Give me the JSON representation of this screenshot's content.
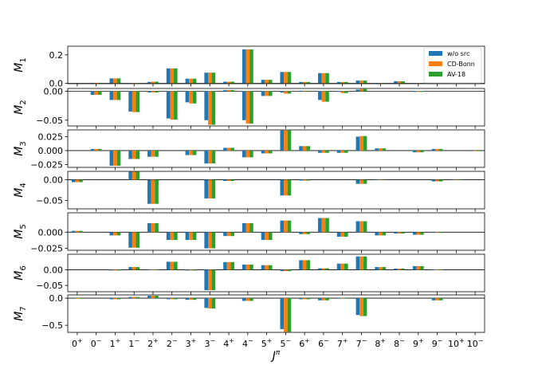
{
  "chart_data": {
    "type": "bar",
    "xlabel": "J^π",
    "categories": [
      {
        "J": "0",
        "p": "+"
      },
      {
        "J": "0",
        "p": "−"
      },
      {
        "J": "1",
        "p": "+"
      },
      {
        "J": "1",
        "p": "−"
      },
      {
        "J": "2",
        "p": "+"
      },
      {
        "J": "2",
        "p": "−"
      },
      {
        "J": "3",
        "p": "+"
      },
      {
        "J": "3",
        "p": "−"
      },
      {
        "J": "4",
        "p": "+"
      },
      {
        "J": "4",
        "p": "−"
      },
      {
        "J": "5",
        "p": "+"
      },
      {
        "J": "5",
        "p": "−"
      },
      {
        "J": "6",
        "p": "+"
      },
      {
        "J": "6",
        "p": "−"
      },
      {
        "J": "7",
        "p": "+"
      },
      {
        "J": "7",
        "p": "−"
      },
      {
        "J": "8",
        "p": "+"
      },
      {
        "J": "8",
        "p": "−"
      },
      {
        "J": "9",
        "p": "+"
      },
      {
        "J": "9",
        "p": "−"
      },
      {
        "J": "10",
        "p": "+"
      },
      {
        "J": "10",
        "p": "−"
      }
    ],
    "series_names": [
      "w/o src",
      "CD-Bonn",
      "AV-18"
    ],
    "colors": [
      "#1f77b4",
      "#ff7f0e",
      "#2ca02c"
    ],
    "legend_location": "top-right",
    "panels": [
      {
        "ylabel_base": "M",
        "ylabel_sub": "1",
        "ylim": [
          -0.002,
          0.26
        ],
        "yticks": [
          0.0,
          0.2
        ],
        "yticklabels": [
          "0.0",
          "0.2"
        ],
        "values": [
          [
            0,
            0,
            0
          ],
          [
            0.004,
            0.004,
            0.004
          ],
          [
            0.035,
            0.035,
            0.035
          ],
          [
            0.002,
            0.002,
            0.002
          ],
          [
            0.01,
            0.012,
            0.012
          ],
          [
            0.105,
            0.105,
            0.105
          ],
          [
            0.033,
            0.033,
            0.033
          ],
          [
            0.075,
            0.075,
            0.075
          ],
          [
            0.012,
            0.012,
            0.012
          ],
          [
            0.238,
            0.238,
            0.238
          ],
          [
            0.025,
            0.025,
            0.025
          ],
          [
            0.08,
            0.08,
            0.08
          ],
          [
            0.01,
            0.01,
            0.01
          ],
          [
            0.072,
            0.072,
            0.072
          ],
          [
            0.01,
            0.01,
            0.01
          ],
          [
            0.02,
            0.02,
            0.02
          ],
          [
            0.003,
            0.003,
            0.003
          ],
          [
            0.015,
            0.015,
            0.015
          ],
          [
            0.002,
            0.002,
            0.002
          ],
          [
            0.004,
            0.004,
            0.004
          ],
          [
            0.001,
            0.001,
            0.001
          ],
          [
            0.002,
            0.002,
            0.002
          ]
        ]
      },
      {
        "ylabel_base": "M",
        "ylabel_sub": "2",
        "ylim": [
          -0.06,
          0.005
        ],
        "yticks": [
          0.0,
          -0.05
        ],
        "yticklabels": [
          "0.00",
          "−0.05"
        ],
        "values": [
          [
            0,
            0,
            0
          ],
          [
            -0.006,
            -0.006,
            -0.006
          ],
          [
            -0.015,
            -0.015,
            -0.015
          ],
          [
            -0.035,
            -0.036,
            -0.036
          ],
          [
            -0.002,
            -0.002,
            -0.002
          ],
          [
            -0.047,
            -0.049,
            -0.049
          ],
          [
            -0.019,
            -0.021,
            -0.021
          ],
          [
            -0.05,
            -0.058,
            -0.058
          ],
          [
            0.002,
            0.002,
            0.002
          ],
          [
            -0.05,
            -0.056,
            -0.056
          ],
          [
            -0.008,
            -0.008,
            -0.008
          ],
          [
            -0.002,
            -0.004,
            -0.004
          ],
          [
            0.001,
            0.001,
            0.001
          ],
          [
            -0.015,
            -0.018,
            -0.018
          ],
          [
            -0.001,
            -0.003,
            -0.003
          ],
          [
            0.003,
            0.004,
            0.004
          ],
          [
            0,
            0,
            0
          ],
          [
            0,
            0,
            0
          ],
          [
            -0.001,
            -0.001,
            -0.001
          ],
          [
            0,
            0,
            0
          ],
          [
            0,
            0,
            0
          ],
          [
            0,
            0,
            0
          ]
        ]
      },
      {
        "ylabel_base": "M",
        "ylabel_sub": "3",
        "ylim": [
          -0.03,
          0.037
        ],
        "yticks": [
          0.025,
          0.0,
          -0.025
        ],
        "yticklabels": [
          "0.025",
          "0.000",
          "−0.025"
        ],
        "values": [
          [
            0,
            0,
            0
          ],
          [
            0.003,
            0.003,
            0.003
          ],
          [
            -0.027,
            -0.027,
            -0.027
          ],
          [
            -0.015,
            -0.015,
            -0.015
          ],
          [
            -0.011,
            -0.011,
            -0.011
          ],
          [
            0,
            0,
            0
          ],
          [
            -0.008,
            -0.008,
            -0.008
          ],
          [
            -0.023,
            -0.023,
            -0.023
          ],
          [
            0.005,
            0.005,
            0.005
          ],
          [
            -0.012,
            -0.012,
            -0.012
          ],
          [
            -0.005,
            -0.005,
            -0.005
          ],
          [
            0.036,
            0.036,
            0.036
          ],
          [
            0.008,
            0.008,
            0.008
          ],
          [
            -0.004,
            -0.004,
            -0.004
          ],
          [
            -0.004,
            -0.004,
            -0.004
          ],
          [
            0.025,
            0.026,
            0.026
          ],
          [
            0.004,
            0.004,
            0.004
          ],
          [
            0,
            0,
            0
          ],
          [
            -0.003,
            -0.003,
            -0.003
          ],
          [
            0.003,
            0.003,
            0.003
          ],
          [
            0,
            0,
            0
          ],
          [
            -0.001,
            -0.001,
            -0.001
          ]
        ]
      },
      {
        "ylabel_base": "M",
        "ylabel_sub": "4",
        "ylim": [
          -0.07,
          0.02
        ],
        "yticks": [
          0.0,
          -0.05
        ],
        "yticklabels": [
          "0.00",
          "−0.05"
        ],
        "values": [
          [
            -0.006,
            -0.006,
            -0.006
          ],
          [
            0,
            0,
            0
          ],
          [
            0,
            0,
            0
          ],
          [
            0.019,
            0.019,
            0.019
          ],
          [
            -0.058,
            -0.058,
            -0.058
          ],
          [
            0,
            0,
            0
          ],
          [
            0,
            0,
            0
          ],
          [
            -0.045,
            -0.045,
            -0.045
          ],
          [
            -0.003,
            -0.003,
            -0.003
          ],
          [
            0,
            0,
            0
          ],
          [
            0,
            0,
            0
          ],
          [
            -0.038,
            -0.038,
            -0.038
          ],
          [
            -0.002,
            -0.002,
            -0.002
          ],
          [
            0,
            0,
            0
          ],
          [
            0,
            0,
            0
          ],
          [
            -0.01,
            -0.01,
            -0.01
          ],
          [
            -0.001,
            -0.001,
            -0.001
          ],
          [
            0,
            0,
            0
          ],
          [
            0,
            0,
            0
          ],
          [
            -0.004,
            -0.004,
            -0.004
          ],
          [
            -0.001,
            -0.001,
            -0.001
          ],
          [
            0,
            0,
            0
          ]
        ]
      },
      {
        "ylabel_base": "M",
        "ylabel_sub": "5",
        "ylim": [
          -0.028,
          0.03
        ],
        "yticks": [
          0.0,
          -0.025
        ],
        "yticklabels": [
          "0.000",
          "−0.025"
        ],
        "values": [
          [
            0.002,
            0.002,
            0.002
          ],
          [
            0,
            0,
            0
          ],
          [
            -0.005,
            -0.005,
            -0.005
          ],
          [
            -0.024,
            -0.024,
            -0.024
          ],
          [
            0.014,
            0.014,
            0.014
          ],
          [
            -0.012,
            -0.012,
            -0.012
          ],
          [
            -0.012,
            -0.012,
            -0.012
          ],
          [
            -0.025,
            -0.025,
            -0.025
          ],
          [
            -0.006,
            -0.006,
            -0.006
          ],
          [
            0.014,
            0.014,
            0.014
          ],
          [
            -0.012,
            -0.012,
            -0.012
          ],
          [
            0.018,
            0.018,
            0.018
          ],
          [
            -0.003,
            -0.003,
            -0.003
          ],
          [
            0.022,
            0.022,
            0.022
          ],
          [
            -0.007,
            -0.007,
            -0.007
          ],
          [
            0.017,
            0.017,
            0.017
          ],
          [
            -0.005,
            -0.005,
            -0.005
          ],
          [
            -0.002,
            -0.002,
            -0.002
          ],
          [
            -0.004,
            -0.004,
            -0.004
          ],
          [
            -0.001,
            -0.001,
            -0.001
          ],
          [
            0,
            0,
            0
          ],
          [
            0,
            0,
            0
          ]
        ]
      },
      {
        "ylabel_base": "M",
        "ylabel_sub": "6",
        "ylim": [
          -0.07,
          0.05
        ],
        "yticks": [
          0.0,
          -0.05
        ],
        "yticklabels": [
          "0.00",
          "−0.05"
        ],
        "values": [
          [
            0,
            0,
            0
          ],
          [
            0,
            0,
            0
          ],
          [
            -0.002,
            -0.002,
            -0.002
          ],
          [
            0.009,
            0.009,
            0.009
          ],
          [
            0.001,
            0.001,
            0.001
          ],
          [
            0.026,
            0.026,
            0.026
          ],
          [
            -0.002,
            -0.002,
            -0.002
          ],
          [
            -0.065,
            -0.065,
            -0.065
          ],
          [
            0.025,
            0.025,
            0.025
          ],
          [
            0.017,
            0.017,
            0.017
          ],
          [
            0.015,
            0.015,
            0.015
          ],
          [
            -0.004,
            -0.004,
            -0.004
          ],
          [
            0.031,
            0.031,
            0.031
          ],
          [
            0.005,
            0.005,
            0.005
          ],
          [
            0.02,
            0.02,
            0.02
          ],
          [
            0.043,
            0.043,
            0.043
          ],
          [
            0.009,
            0.009,
            0.009
          ],
          [
            0.004,
            0.004,
            0.004
          ],
          [
            0.012,
            0.012,
            0.012
          ],
          [
            0.001,
            0.001,
            0.001
          ],
          [
            0,
            0,
            0
          ],
          [
            0,
            0,
            0
          ]
        ]
      },
      {
        "ylabel_base": "M",
        "ylabel_sub": "7",
        "ylim": [
          -0.63,
          0.06
        ],
        "yticks": [
          0.0,
          -0.5
        ],
        "yticklabels": [
          "0.0",
          "−0.5"
        ],
        "values": [
          [
            -0.01,
            -0.01,
            -0.01
          ],
          [
            0,
            0,
            0
          ],
          [
            -0.02,
            -0.02,
            -0.02
          ],
          [
            0.022,
            0.022,
            0.022
          ],
          [
            0.045,
            0.045,
            0.045
          ],
          [
            -0.02,
            -0.02,
            -0.02
          ],
          [
            -0.03,
            -0.03,
            -0.03
          ],
          [
            -0.18,
            -0.19,
            -0.19
          ],
          [
            0,
            0,
            0
          ],
          [
            -0.05,
            -0.05,
            -0.05
          ],
          [
            0,
            0,
            0
          ],
          [
            -0.57,
            -0.62,
            -0.62
          ],
          [
            -0.02,
            -0.02,
            -0.02
          ],
          [
            -0.04,
            -0.04,
            -0.04
          ],
          [
            0.01,
            0.01,
            0.01
          ],
          [
            -0.31,
            -0.33,
            -0.33
          ],
          [
            0,
            0,
            0
          ],
          [
            0,
            0,
            0
          ],
          [
            0,
            0,
            0
          ],
          [
            -0.04,
            -0.04,
            -0.04
          ],
          [
            0,
            0,
            0
          ],
          [
            0,
            0,
            0
          ]
        ]
      }
    ]
  }
}
